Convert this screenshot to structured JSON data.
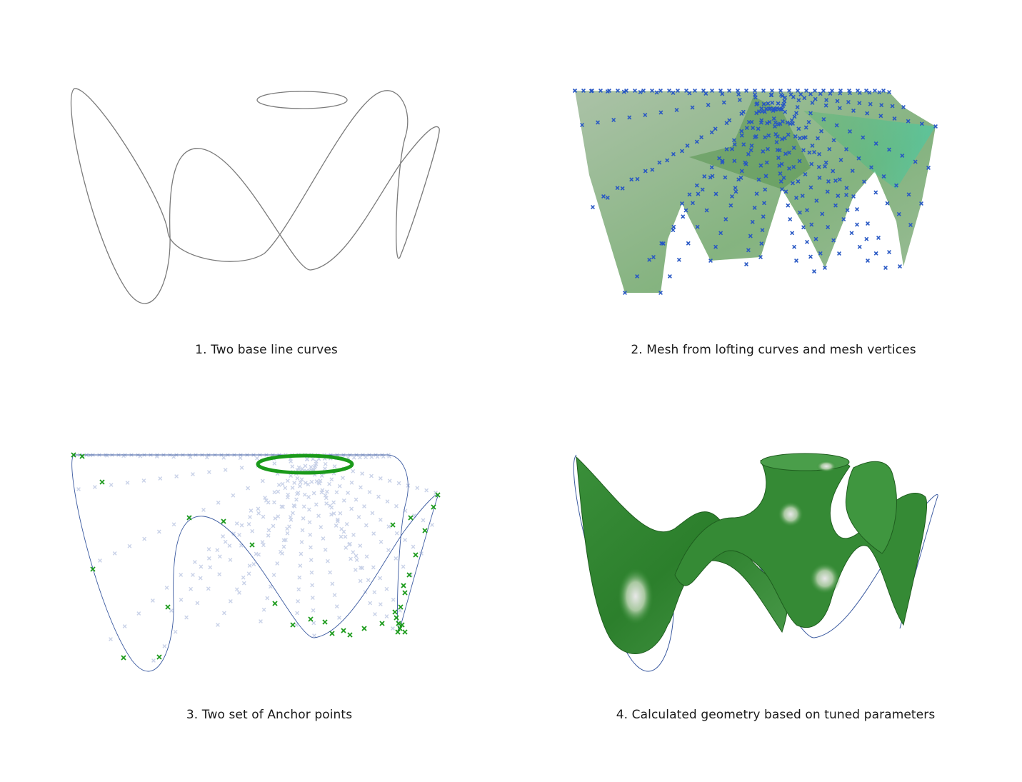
{
  "captions": {
    "panel1": "1. Two base line curves",
    "panel2": "2. Mesh from lofting curves and mesh vertices",
    "panel3": "3. Two set of Anchor points",
    "panel4": "4. Calculated geometry based on tuned parameters"
  },
  "colors": {
    "curve": "#7a7a7a",
    "mesh_fill": "#6f9a6a",
    "mesh_highlight": "#3fd0a0",
    "vertex_marker": "#2757c4",
    "anchor_marker": "#1a9a1a",
    "faded_marker": "#c9d2e8",
    "thin_curve": "#3b5aa0",
    "surface": "#2f8a2f",
    "surface_dark": "#1f5e1f"
  }
}
